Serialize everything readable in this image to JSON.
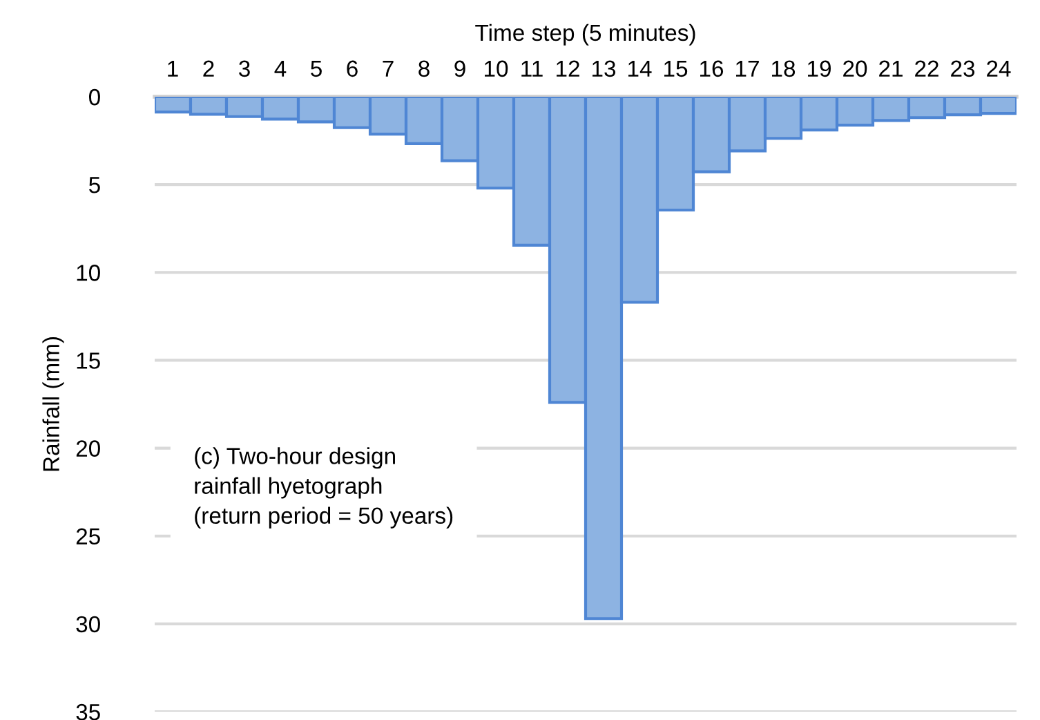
{
  "chart_data": {
    "type": "bar",
    "xlabel": "Time step (5 minutes)",
    "ylabel": "Rainfall (mm)",
    "categories": [
      "1",
      "2",
      "3",
      "4",
      "5",
      "6",
      "7",
      "8",
      "9",
      "10",
      "11",
      "12",
      "13",
      "14",
      "15",
      "16",
      "17",
      "18",
      "19",
      "20",
      "21",
      "22",
      "23",
      "24"
    ],
    "values": [
      0.87,
      1.0,
      1.13,
      1.27,
      1.43,
      1.76,
      2.13,
      2.67,
      3.64,
      5.2,
      8.45,
      17.4,
      29.7,
      11.7,
      6.45,
      4.27,
      3.08,
      2.37,
      1.89,
      1.62,
      1.35,
      1.19,
      1.03,
      0.95
    ],
    "color": "#8db3e2",
    "ylim": [
      35,
      0
    ],
    "yticks": [
      0,
      5,
      10,
      15,
      20,
      25,
      30,
      35
    ],
    "grid": "y",
    "annotations": [
      "(c) Two-hour design\nrainfall hyetograph\n(return period = 50 years)"
    ]
  }
}
